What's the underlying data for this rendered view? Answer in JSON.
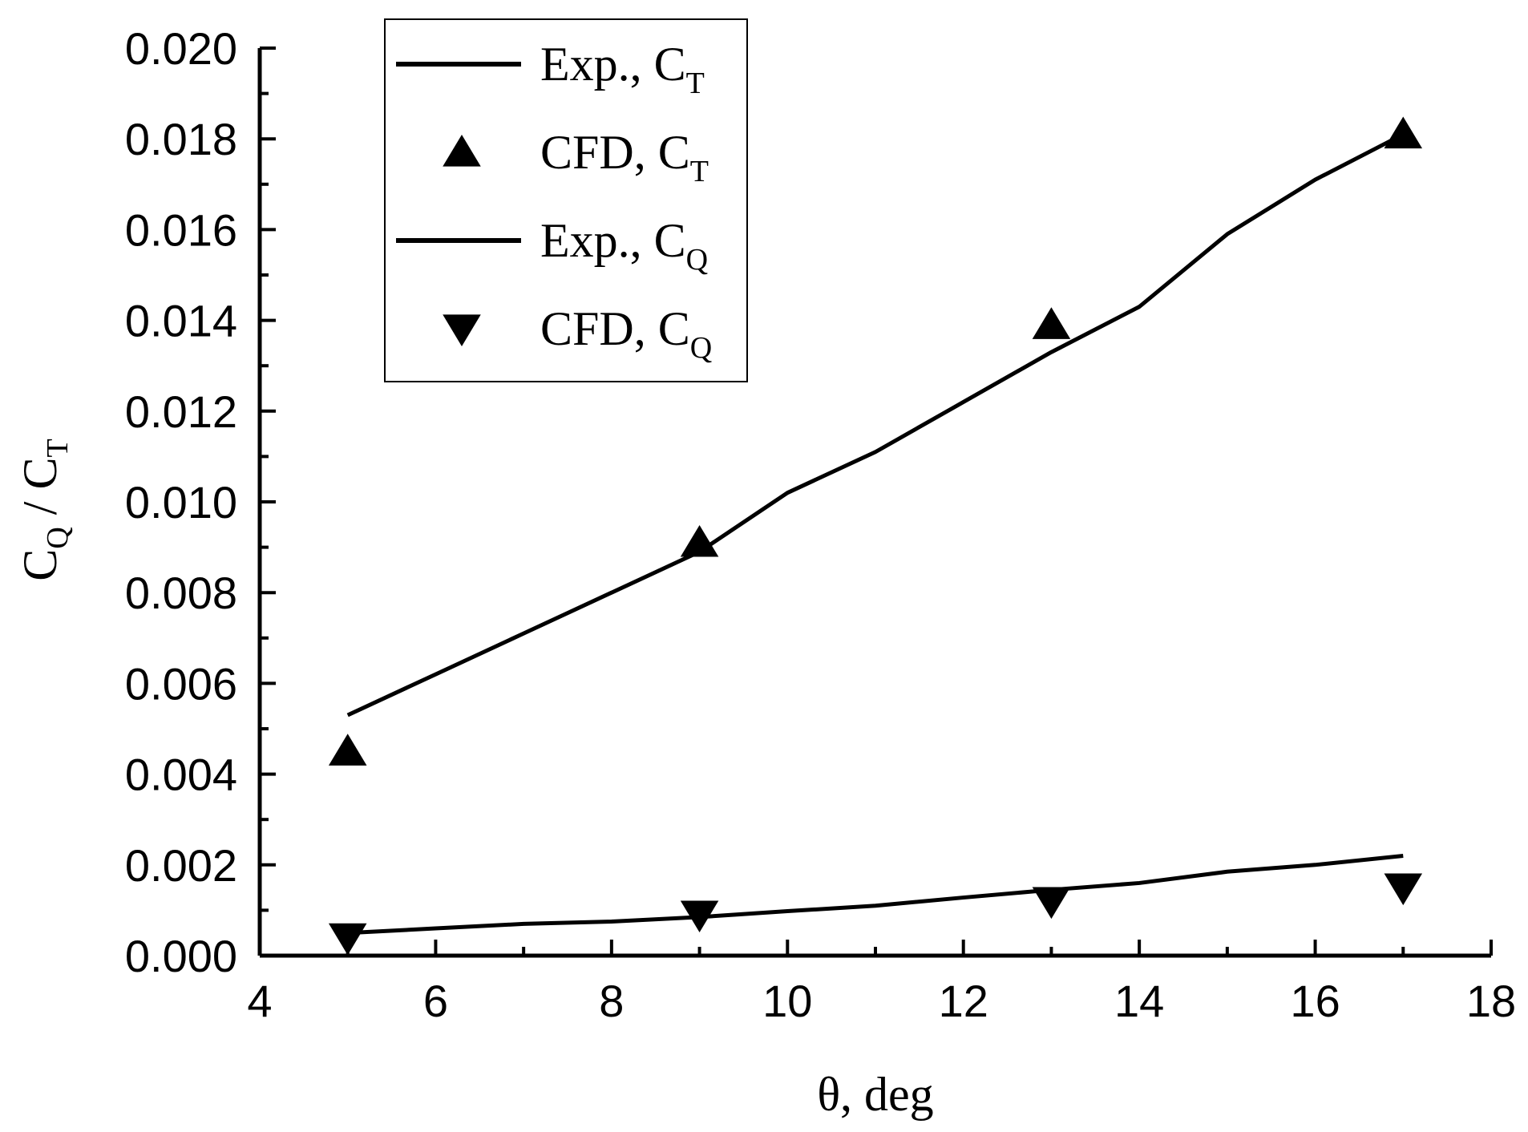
{
  "chart_data": {
    "type": "line",
    "title": "",
    "xlabel": "θ, deg",
    "ylabel": {
      "main_c1": "C",
      "sub_1": "Q",
      "sep": " / ",
      "main_c2": "C",
      "sub_2": "T"
    },
    "xlim": [
      4,
      18
    ],
    "ylim": [
      0.0,
      0.02
    ],
    "xticks": [
      "4",
      "6",
      "8",
      "10",
      "12",
      "14",
      "16",
      "18"
    ],
    "yticks": [
      "0.000",
      "0.002",
      "0.004",
      "0.006",
      "0.008",
      "0.010",
      "0.012",
      "0.014",
      "0.016",
      "0.018",
      "0.020"
    ],
    "grid": false,
    "legend_position": "top-left",
    "series": [
      {
        "name": "Exp., C_T",
        "label_main": "Exp., C",
        "label_sub": "T",
        "kind": "line",
        "x": [
          5,
          6,
          7,
          8,
          9,
          10,
          11,
          12,
          13,
          14,
          15,
          16,
          17
        ],
        "y": [
          0.0053,
          0.0062,
          0.0071,
          0.008,
          0.0089,
          0.0102,
          0.0111,
          0.0122,
          0.0133,
          0.0143,
          0.0159,
          0.0171,
          0.0181
        ]
      },
      {
        "name": "CFD, C_T",
        "label_main": "CFD, C",
        "label_sub": "T",
        "kind": "marker-up",
        "x": [
          5,
          9,
          13,
          17
        ],
        "y": [
          0.0045,
          0.0091,
          0.0139,
          0.0181
        ]
      },
      {
        "name": "Exp., C_Q",
        "label_main": "Exp., C",
        "label_sub": "Q",
        "kind": "line",
        "x": [
          5,
          6,
          7,
          8,
          9,
          10,
          11,
          12,
          13,
          14,
          15,
          16,
          17
        ],
        "y": [
          0.0005,
          0.0006,
          0.0007,
          0.00075,
          0.00085,
          0.00098,
          0.0011,
          0.00128,
          0.00145,
          0.0016,
          0.00185,
          0.002,
          0.0022
        ]
      },
      {
        "name": "CFD, C_Q",
        "label_main": "CFD, C",
        "label_sub": "Q",
        "kind": "marker-down",
        "x": [
          5,
          9,
          13,
          17
        ],
        "y": [
          0.0004,
          0.0009,
          0.0012,
          0.0015
        ]
      }
    ]
  }
}
